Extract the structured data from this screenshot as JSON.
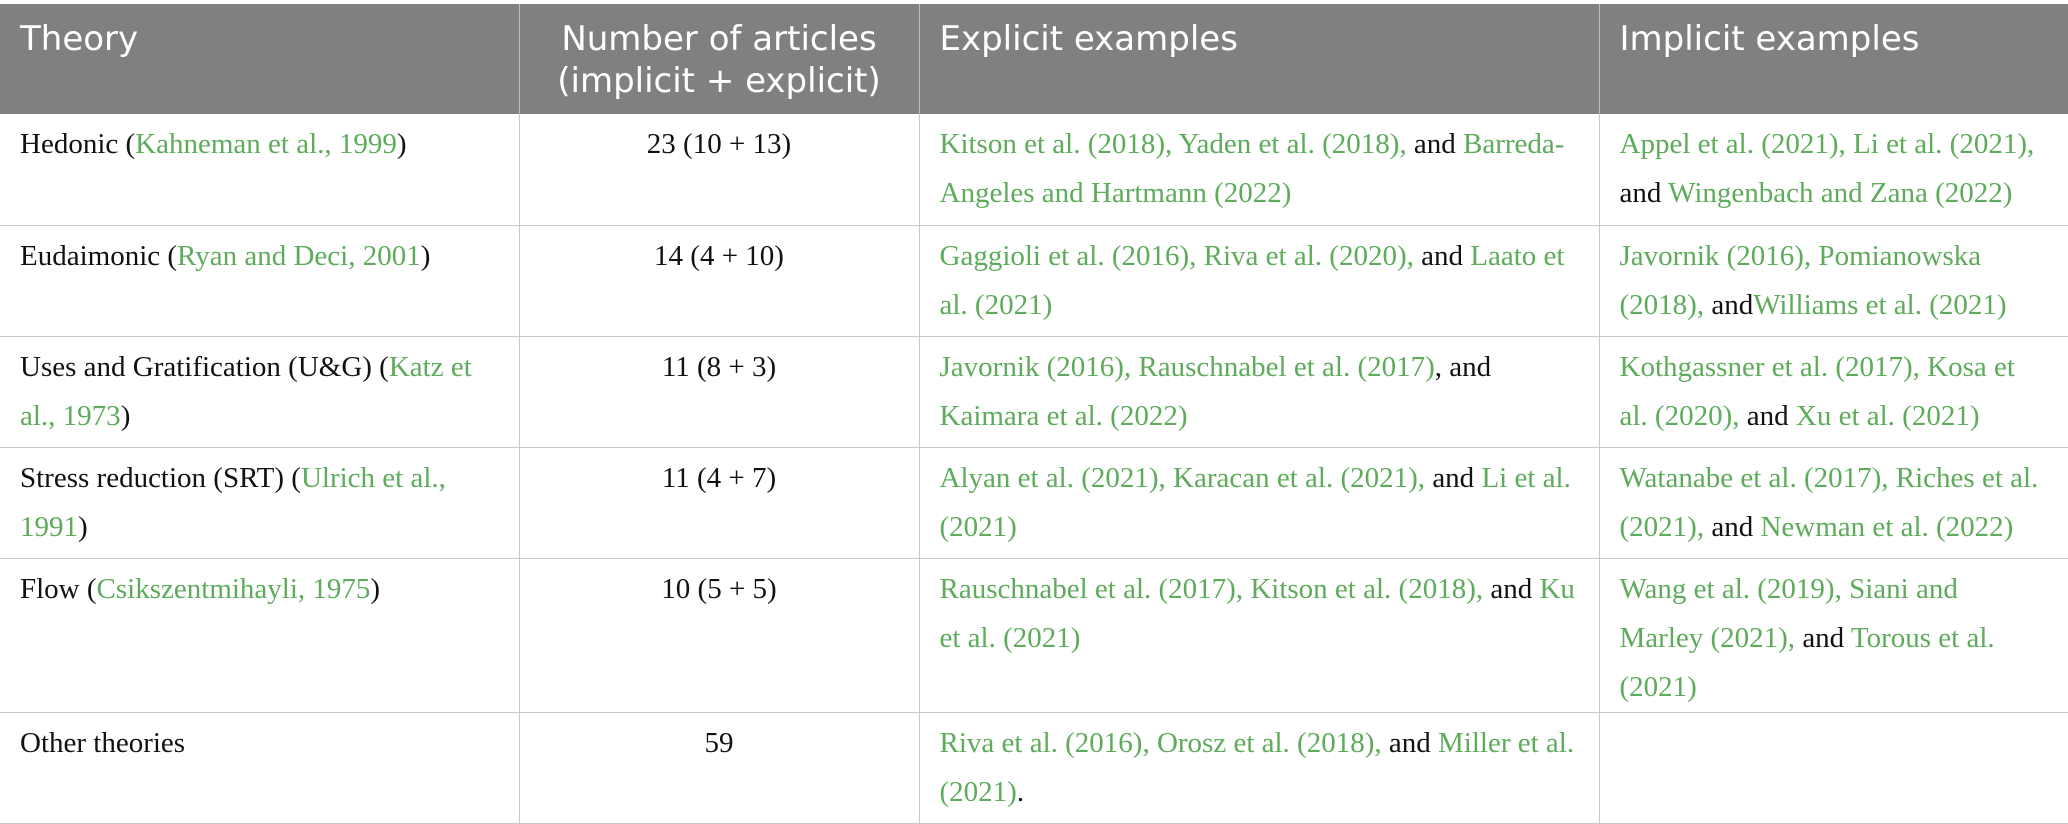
{
  "headers": {
    "theory": "Theory",
    "articles_line1": "Number of articles",
    "articles_line2": "(implicit + explicit)",
    "explicit": "Explicit examples",
    "implicit": "Implicit examples"
  },
  "rows": [
    {
      "theory": {
        "name": "Hedonic (",
        "ref": "Kahneman et al., 1999",
        "tail": ")"
      },
      "count": "23 (10 + 13)",
      "explicit": {
        "refs_a": "Kitson et al. (2018), Yaden et al. (2018),",
        "conj": " and ",
        "refs_b": "Barreda-Angeles and Hartmann (2022)",
        "tail": ""
      },
      "implicit": {
        "refs_a": "Appel et al. (2021), Li et al. (2021),",
        "conj": " and ",
        "refs_b": "Wingenbach and Zana (2022)",
        "tail": ""
      }
    },
    {
      "theory": {
        "name": "Eudaimonic (",
        "ref": "Ryan and Deci, 2001",
        "tail": ")"
      },
      "count": "14 (4 + 10)",
      "explicit": {
        "refs_a": "Gaggioli et al. (2016), Riva et al. (2020),",
        "conj": " and ",
        "refs_b": "Laato et al. (2021)",
        "tail": ""
      },
      "implicit": {
        "refs_a": "Javornik (2016), Pomianowska (2018),",
        "conj": " and",
        "refs_b": "Williams et al. (2021)",
        "tail": ""
      }
    },
    {
      "theory": {
        "name": "Uses and Gratification (U&G) (",
        "ref": "Katz et al., 1973",
        "tail": ")"
      },
      "count": "11 (8 + 3)",
      "explicit": {
        "refs_a": "Javornik (2016), Rauschnabel et al. (2017)",
        "conj": ", and ",
        "refs_b": "Kaimara et al. (2022)",
        "tail": ""
      },
      "implicit": {
        "refs_a": "Kothgassner et al. (2017), Kosa et al. (2020),",
        "conj": " and ",
        "refs_b": "Xu et al. (2021)",
        "tail": ""
      }
    },
    {
      "theory": {
        "name": "Stress reduction (SRT) (",
        "ref": "Ulrich et al., 1991",
        "tail": ")"
      },
      "count": "11 (4 + 7)",
      "explicit": {
        "refs_a": "Alyan et al. (2021), Karacan et al. (2021),",
        "conj": " and ",
        "refs_b": "Li et al. (2021)",
        "tail": ""
      },
      "implicit": {
        "refs_a": "Watanabe et al. (2017), Riches et al. (2021),",
        "conj": " and ",
        "refs_b": "Newman et al. (2022)",
        "tail": ""
      }
    },
    {
      "theory": {
        "name": "Flow (",
        "ref": "Csikszentmihayli, 1975",
        "tail": ")"
      },
      "count": "10 (5 + 5)",
      "explicit": {
        "refs_a": "Rauschnabel et al. (2017), Kitson et al. (2018),",
        "conj": " and ",
        "refs_b": "Ku et al. (2021)",
        "tail": ""
      },
      "implicit": {
        "refs_a": "Wang et al. (2019), Siani and Marley (2021),",
        "conj": " and ",
        "refs_b": "Torous et al. (2021)",
        "tail": ""
      }
    },
    {
      "theory": {
        "name": "Other theories",
        "ref": "",
        "tail": ""
      },
      "count": "59",
      "explicit": {
        "refs_a": "Riva et al. (2016), Orosz et al. (2018),",
        "conj": " and ",
        "refs_b": "Miller et al. (2021)",
        "tail": "."
      },
      "implicit": {
        "refs_a": "",
        "conj": "",
        "refs_b": "",
        "tail": ""
      }
    }
  ],
  "colors": {
    "header_bg": "#7f807f",
    "header_text": "#ffffff",
    "reference_link": "#5dab5b",
    "body_text": "#111111",
    "grid_line": "#c8c8c8"
  }
}
